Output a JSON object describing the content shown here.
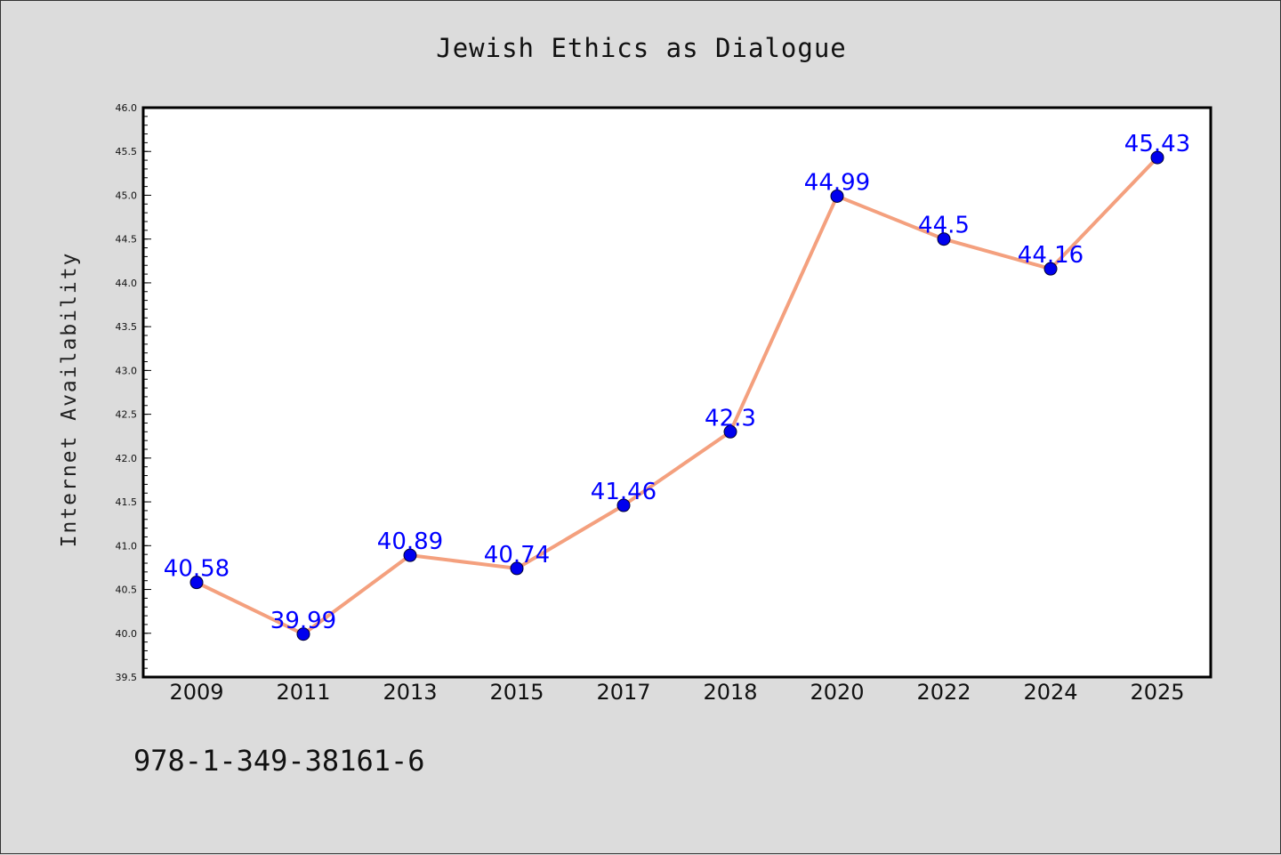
{
  "chart_data": {
    "type": "line",
    "title": "Jewish Ethics as Dialogue",
    "xlabel": "",
    "ylabel": "Internet Availability",
    "categories": [
      "2009",
      "2011",
      "2013",
      "2015",
      "2017",
      "2018",
      "2020",
      "2022",
      "2024",
      "2025"
    ],
    "series": [
      {
        "values": [
          40.58,
          39.99,
          40.89,
          40.74,
          41.46,
          42.3,
          44.99,
          44.5,
          44.16,
          45.43
        ],
        "labels": [
          "40.58",
          "39.99",
          "40.89",
          "40.74",
          "41.46",
          "42.3",
          "44.99",
          "44.5",
          "44.16",
          "45.43"
        ]
      }
    ],
    "ylim": [
      39.5,
      46.0
    ],
    "yticks": [
      "39.5",
      "40.0",
      "40.5",
      "41.0",
      "41.5",
      "42.0",
      "42.5",
      "43.0",
      "43.5",
      "44.0",
      "44.5",
      "45.0",
      "45.5",
      "46.0"
    ],
    "grid": false,
    "legend": "none",
    "colors": {
      "line": "#f4a07e",
      "marker": "#0000ee",
      "data_label": "#0000ff",
      "background": "#dcdcdc",
      "plot_background": "#ffffff"
    }
  },
  "footer": {
    "isbn": "978-1-349-38161-6"
  }
}
